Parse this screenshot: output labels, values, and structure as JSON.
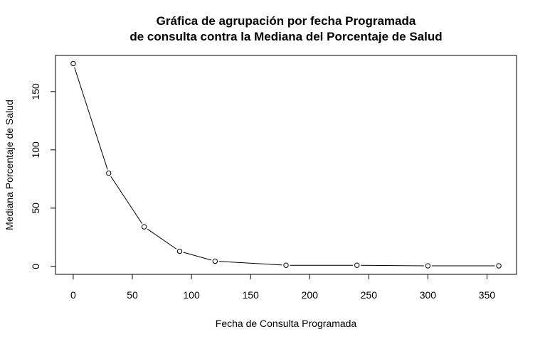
{
  "chart_data": {
    "type": "line",
    "title_line1": "Gráfica de agrupación por fecha Programada",
    "title_line2": "de consulta contra la Mediana del Porcentaje de Salud",
    "xlabel": "Fecha de Consulta Programada",
    "ylabel": "Mediana Porcentaje de Salud",
    "xlim": [
      -15,
      375
    ],
    "ylim": [
      -6.8,
      181
    ],
    "x_ticks": [
      0,
      50,
      100,
      150,
      200,
      250,
      300,
      350
    ],
    "y_ticks": [
      0,
      50,
      100,
      150
    ],
    "grid": false,
    "series": [
      {
        "x": [
          0,
          30,
          60,
          90,
          120,
          180,
          240,
          300,
          360
        ],
        "values": [
          174,
          80,
          34,
          13,
          4.5,
          1,
          1,
          0.5,
          0.5
        ],
        "color": "#000000",
        "marker": "open-circle"
      }
    ]
  }
}
